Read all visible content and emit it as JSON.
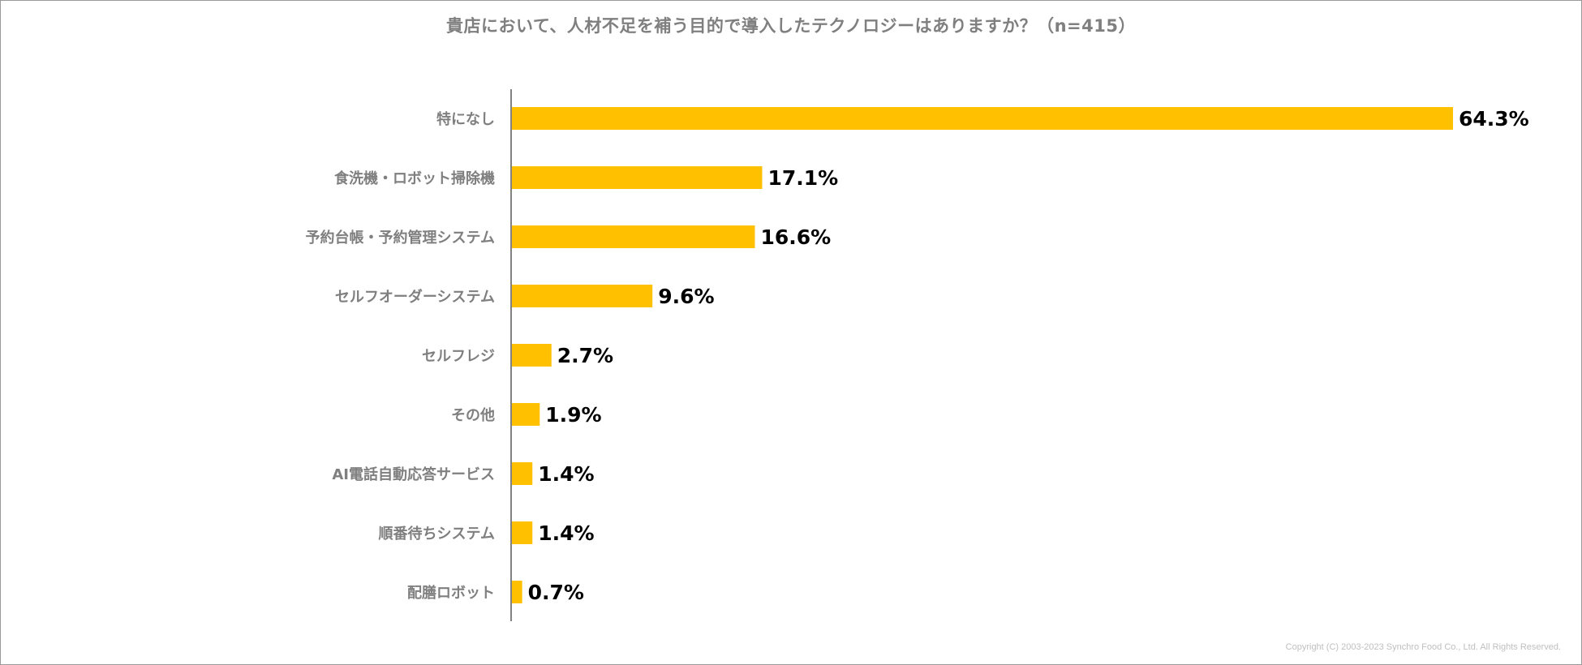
{
  "title": "貴店において、人材不足を補う目的で導入したテクノロジーはありますか？（n=415）",
  "footer": "Copyright (C) 2003-2023   Synchro Food Co., Ltd. All Rights Reserved.",
  "colors": {
    "bar": "#FFC000",
    "axis": "#595959"
  },
  "chart_data": {
    "type": "bar",
    "orientation": "horizontal",
    "title": "貴店において、人材不足を補う目的で導入したテクノロジーはありますか？（n=415）",
    "categories": [
      "特になし",
      "食洗機・ロボット掃除機",
      "予約台帳・予約管理システム",
      "セルフオーダーシステム",
      "セルフレジ",
      "その他",
      "AI電話自動応答サービス",
      "順番待ちシステム",
      "配膳ロボット"
    ],
    "values": [
      64.3,
      17.1,
      16.6,
      9.6,
      2.7,
      1.9,
      1.4,
      1.4,
      0.7
    ],
    "value_labels": [
      "64.3%",
      "17.1%",
      "16.6%",
      "9.6%",
      "2.7%",
      "1.9%",
      "1.4%",
      "1.4%",
      "0.7%"
    ],
    "unit": "%",
    "xlim": [
      0,
      64.3
    ],
    "grid": false,
    "legend": "none"
  }
}
